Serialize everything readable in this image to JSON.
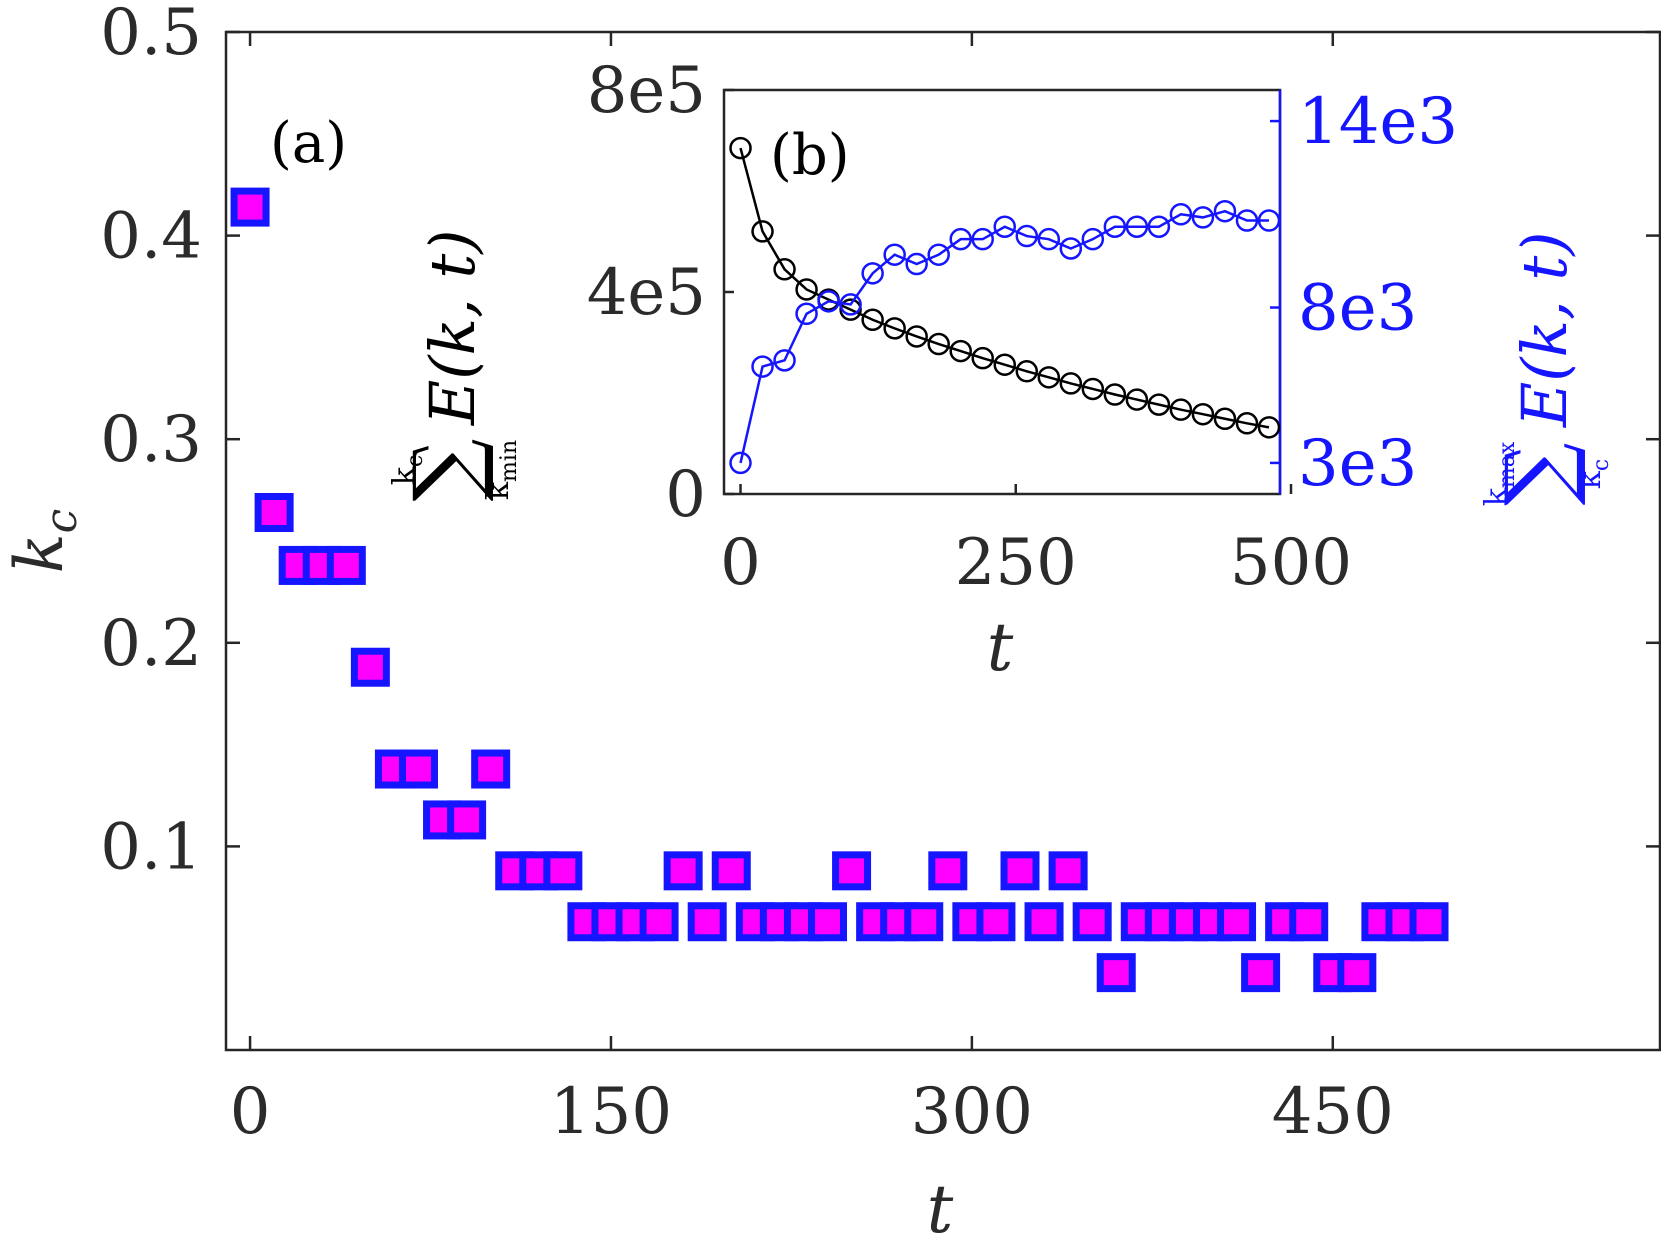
{
  "chart_data": [
    {
      "panel": "(a)",
      "type": "scatter",
      "title": "",
      "xlabel": "t",
      "ylabel": "k_c",
      "xlim": [
        -10,
        586
      ],
      "ylim": [
        0,
        0.5
      ],
      "xticks": [
        "0",
        "150",
        "300",
        "450"
      ],
      "yticks": [
        "0.1",
        "0.2",
        "0.3",
        "0.4",
        "0.5"
      ],
      "marker": {
        "shape": "square",
        "fill": "#ff00ff",
        "edge": "#1515ff"
      },
      "x": [
        0,
        10,
        20,
        30,
        40,
        50,
        60,
        70,
        80,
        90,
        100,
        110,
        120,
        130,
        140,
        150,
        160,
        170,
        180,
        190,
        200,
        210,
        220,
        230,
        240,
        250,
        260,
        270,
        280,
        290,
        300,
        310,
        320,
        330,
        340,
        350,
        360,
        370,
        380,
        390,
        400,
        410,
        420,
        430,
        440,
        450,
        460,
        470,
        480,
        490
      ],
      "y": [
        0.414,
        0.264,
        0.238,
        0.238,
        0.238,
        0.188,
        0.138,
        0.138,
        0.113,
        0.113,
        0.138,
        0.088,
        0.088,
        0.088,
        0.063,
        0.063,
        0.063,
        0.063,
        0.088,
        0.063,
        0.088,
        0.063,
        0.063,
        0.063,
        0.063,
        0.088,
        0.063,
        0.063,
        0.063,
        0.088,
        0.063,
        0.063,
        0.088,
        0.063,
        0.088,
        0.063,
        0.038,
        0.063,
        0.063,
        0.063,
        0.063,
        0.063,
        0.038,
        0.063,
        0.063,
        0.038,
        0.038,
        0.063,
        0.063,
        0.063
      ]
    },
    {
      "panel": "(b)",
      "type": "line",
      "title": "",
      "xlabel": "t",
      "xlim": [
        -15,
        490
      ],
      "xticks": [
        "0",
        "250",
        "500"
      ],
      "left_axis": {
        "ylim": [
          0,
          800000
        ],
        "yticks": [
          "0",
          "4e5",
          "8e5"
        ],
        "label_sum_upper": "k",
        "label_sum_upper_sub": "c",
        "label_sum_lower": "k",
        "label_sum_lower_sub": "min",
        "label_expr": "E(k, t)",
        "color": "#000000"
      },
      "right_axis": {
        "ylim": [
          2000,
          15000
        ],
        "yticks": [
          "3e3",
          "8e3",
          "14e3"
        ],
        "label_sum_upper": "k",
        "label_sum_upper_sub": "max",
        "label_sum_lower": "k",
        "label_sum_lower_sub": "c",
        "label_expr": "E(k, t)",
        "color": "#1515ff"
      },
      "x": [
        0,
        20,
        40,
        60,
        80,
        100,
        120,
        140,
        160,
        180,
        200,
        220,
        240,
        260,
        280,
        300,
        320,
        340,
        360,
        380,
        400,
        420,
        440,
        460,
        480
      ],
      "series": [
        {
          "name": "sum kmin to kc of E(k,t)",
          "axis": "left",
          "color": "#000000",
          "values": [
            685000,
            520000,
            445000,
            405000,
            385000,
            365000,
            345000,
            328000,
            312000,
            297000,
            283000,
            269000,
            256000,
            243000,
            231000,
            219000,
            208000,
            197000,
            187000,
            177000,
            167000,
            158000,
            149000,
            140000,
            132000
          ]
        },
        {
          "name": "sum kc to kmax of E(k,t)",
          "axis": "right",
          "color": "#1515ff",
          "values": [
            3000,
            6100,
            6300,
            7800,
            8200,
            8100,
            9100,
            9700,
            9400,
            9700,
            10200,
            10200,
            10600,
            10300,
            10200,
            9900,
            10200,
            10600,
            10600,
            10600,
            11000,
            10900,
            11100,
            10800,
            10800
          ]
        }
      ]
    }
  ]
}
